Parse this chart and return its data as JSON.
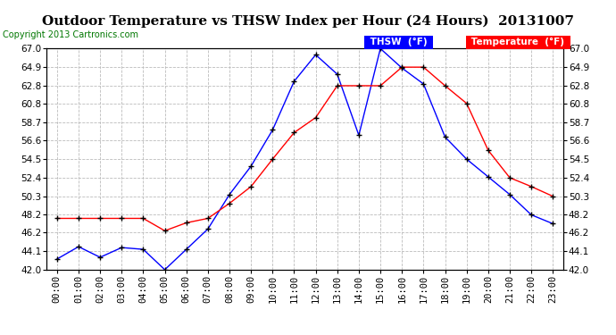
{
  "title": "Outdoor Temperature vs THSW Index per Hour (24 Hours)  20131007",
  "copyright": "Copyright 2013 Cartronics.com",
  "hours": [
    "00:00",
    "01:00",
    "02:00",
    "03:00",
    "04:00",
    "05:00",
    "06:00",
    "07:00",
    "08:00",
    "09:00",
    "10:00",
    "11:00",
    "12:00",
    "13:00",
    "14:00",
    "15:00",
    "16:00",
    "17:00",
    "18:00",
    "19:00",
    "20:00",
    "21:00",
    "22:00",
    "23:00"
  ],
  "thsw": [
    43.2,
    44.6,
    43.4,
    44.5,
    44.3,
    42.0,
    44.3,
    46.6,
    50.5,
    53.7,
    57.8,
    63.3,
    66.3,
    64.1,
    57.2,
    67.0,
    64.8,
    63.0,
    57.0,
    54.5,
    52.5,
    50.5,
    48.2,
    47.2
  ],
  "temp": [
    47.8,
    47.8,
    47.8,
    47.8,
    47.8,
    46.4,
    47.3,
    47.8,
    49.5,
    51.4,
    54.5,
    57.5,
    59.2,
    62.8,
    62.8,
    62.8,
    64.9,
    64.9,
    62.8,
    60.8,
    55.5,
    52.4,
    51.4,
    50.3
  ],
  "thsw_color": "#0000ff",
  "temp_color": "#ff0000",
  "bg_color": "#ffffff",
  "plot_bg": "#ffffff",
  "grid_color": "#bbbbbb",
  "ylim_min": 42.0,
  "ylim_max": 67.0,
  "yticks": [
    42.0,
    44.1,
    46.2,
    48.2,
    50.3,
    52.4,
    54.5,
    56.6,
    58.7,
    60.8,
    62.8,
    64.9,
    67.0
  ],
  "title_fontsize": 11,
  "copyright_fontsize": 7,
  "tick_fontsize": 7.5
}
